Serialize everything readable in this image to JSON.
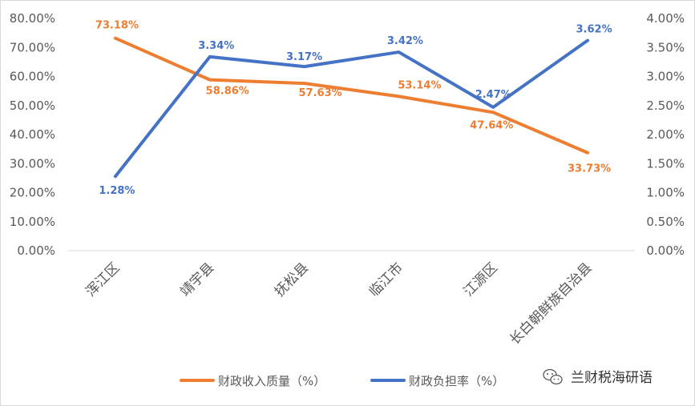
{
  "chart_data": {
    "type": "line",
    "title": "",
    "categories": [
      "浑江区",
      "靖宇县",
      "抚松县",
      "临江市",
      "江源区",
      "长白朝鲜族自治县"
    ],
    "series": [
      {
        "name": "财政收入质量（%）",
        "axis": "left",
        "color": "#ED7D31",
        "values": [
          73.18,
          58.86,
          57.63,
          53.14,
          47.64,
          33.73
        ],
        "labels": [
          "73.18%",
          "58.86%",
          "57.63%",
          "53.14%",
          "47.64%",
          "33.73%"
        ]
      },
      {
        "name": "财政负担率（%）",
        "axis": "right",
        "color": "#4472C4",
        "values": [
          1.28,
          3.34,
          3.17,
          3.42,
          2.47,
          3.62
        ],
        "labels": [
          "1.28%",
          "3.34%",
          "3.17%",
          "3.42%",
          "2.47%",
          "3.62%"
        ]
      }
    ],
    "y_left": {
      "min": 0,
      "max": 80,
      "ticks": [
        "0.00%",
        "10.00%",
        "20.00%",
        "30.00%",
        "40.00%",
        "50.00%",
        "60.00%",
        "70.00%",
        "80.00%"
      ]
    },
    "y_right": {
      "min": 0,
      "max": 4,
      "ticks": [
        "0.00%",
        "0.50%",
        "1.00%",
        "1.50%",
        "2.00%",
        "2.50%",
        "3.00%",
        "3.50%",
        "4.00%"
      ]
    },
    "grid": false,
    "legend": "bottom"
  },
  "watermark": "兰财税海研语"
}
